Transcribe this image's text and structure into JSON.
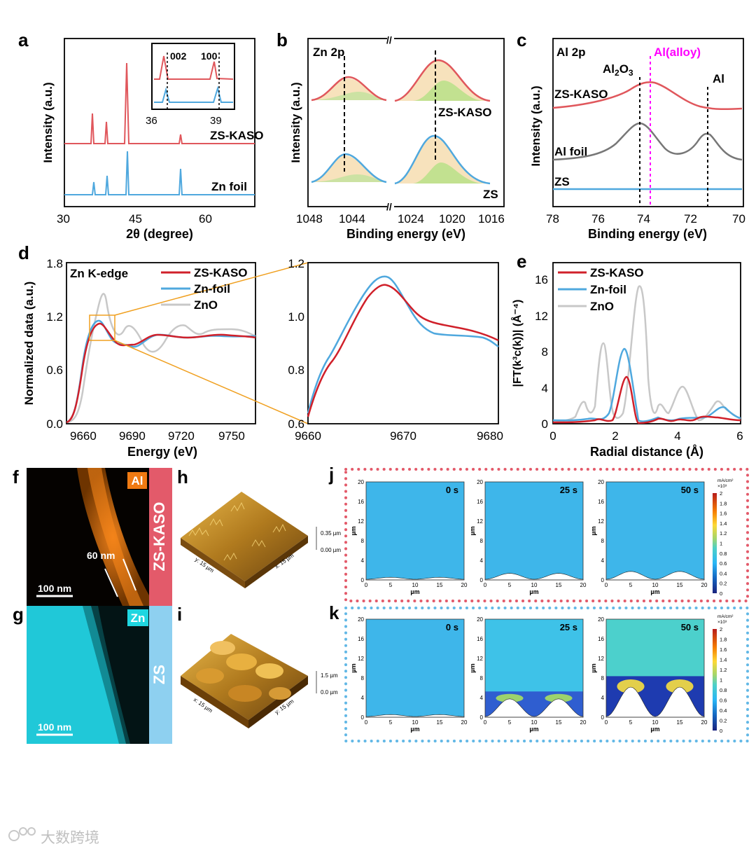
{
  "panels": {
    "a": {
      "letter": "a",
      "ylabel": "Intensity (a.u.)",
      "xlabel": "2θ (degree)",
      "xticks": [
        "30",
        "45",
        "60"
      ],
      "series": [
        "ZS-KASO",
        "Zn foil"
      ],
      "inset": {
        "xticks": [
          "36",
          "39"
        ],
        "peaks": [
          "002",
          "100"
        ]
      }
    },
    "b": {
      "letter": "b",
      "label": "Zn 2p",
      "ylabel": "Intensity (a.u.)",
      "xlabel": "Binding energy (eV)",
      "xticks": [
        "1048",
        "1044",
        "1024",
        "1020",
        "1016"
      ],
      "series": [
        "ZS-KASO",
        "ZS"
      ]
    },
    "c": {
      "letter": "c",
      "label": "Al 2p",
      "ylabel": "Intensity (a.u.)",
      "xlabel": "Binding energy (eV)",
      "xticks": [
        "78",
        "76",
        "74",
        "72",
        "70"
      ],
      "series": [
        "ZS-KASO",
        "Al foil",
        "ZS"
      ],
      "markers": {
        "al2o3_main": "Al",
        "al2o3_sub": "2",
        "al2o3_tail": "O",
        "al2o3_sub2": "3",
        "alloy": "Al(alloy)",
        "al": "Al"
      }
    },
    "d": {
      "letter": "d",
      "label": "Zn K-edge",
      "ylabel": "Normalized data (a.u.)",
      "xlabel": "Energy (eV)",
      "yticks": [
        "0.0",
        "0.6",
        "1.2",
        "1.8"
      ],
      "xticks": [
        "9660",
        "9690",
        "9720",
        "9750"
      ],
      "legend": [
        "ZS-KASO",
        "Zn-foil",
        "ZnO"
      ],
      "zoom": {
        "yticks": [
          "0.6",
          "0.8",
          "1.0",
          "1.2"
        ],
        "xticks": [
          "9660",
          "9670",
          "9680"
        ]
      }
    },
    "e": {
      "letter": "e",
      "ylabel": "|FT(k³c(k))| (Å⁻⁴)",
      "xlabel": "Radial distance (Å)",
      "yticks": [
        "0",
        "4",
        "8",
        "12",
        "16"
      ],
      "xticks": [
        "0",
        "2",
        "4",
        "6"
      ],
      "legend": [
        "ZS-KASO",
        "Zn-foil",
        "ZnO"
      ]
    },
    "f": {
      "letter": "f",
      "element": "Al",
      "scale": "100 nm",
      "thickness": "60 nm",
      "side": "ZS-KASO"
    },
    "g": {
      "letter": "g",
      "element": "Zn",
      "scale": "100 nm",
      "side": "ZS"
    },
    "h": {
      "letter": "h",
      "z1": "0.35 µm",
      "z0": "0.00 µm",
      "ax": "x: 15 µm",
      "ay": "y: 15 µm"
    },
    "i": {
      "letter": "i",
      "z1": "1.5 µm",
      "z0": "0.0 µm",
      "ax": "x: 15 µm",
      "ay": "y: 15 µm"
    },
    "j": {
      "letter": "j",
      "times": [
        "0 s",
        "25 s",
        "50 s"
      ]
    },
    "k": {
      "letter": "k",
      "times": [
        "0 s",
        "25 s",
        "50 s"
      ]
    },
    "sim": {
      "unit": "µm",
      "yticks": [
        "0",
        "4",
        "8",
        "12",
        "16",
        "20"
      ],
      "xticks": [
        "0",
        "5",
        "10",
        "15",
        "20"
      ],
      "cbar_unit": "mA/cm²",
      "cbar_exp": "×10³",
      "cbar_ticks": [
        "2",
        "1.8",
        "1.6",
        "1.4",
        "1.2",
        "1",
        "0.8",
        "0.6",
        "0.4",
        "0.2",
        "0"
      ]
    }
  },
  "watermark": "大数跨境",
  "colors": {
    "red": "#e0575c",
    "blue": "#4fa8de",
    "gray": "#c8c8c8",
    "darkred": "#d0202a",
    "magenta": "#ff00ff",
    "orange": "#f0a020"
  }
}
